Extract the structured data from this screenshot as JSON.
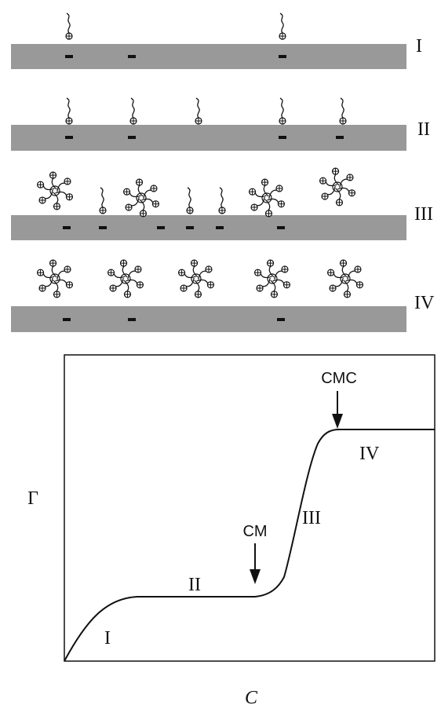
{
  "panels": {
    "rows": [
      {
        "label": "I"
      },
      {
        "label": "II"
      },
      {
        "label": "III"
      },
      {
        "label": "IV"
      }
    ]
  },
  "graph": {
    "regions": [
      "I",
      "II",
      "III",
      "IV"
    ],
    "arrows": [
      {
        "label": "CM"
      },
      {
        "label": "CMC"
      }
    ],
    "y_label": "Γ",
    "x_label": "C"
  }
}
